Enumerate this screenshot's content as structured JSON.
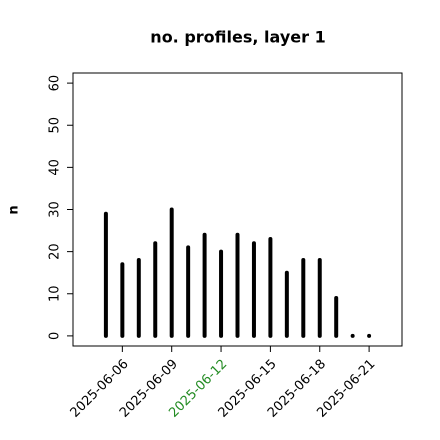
{
  "chart_data": {
    "type": "bar",
    "title": "no. profiles, layer 1",
    "y_label": "n",
    "x": [
      "2025-06-05",
      "2025-06-06",
      "2025-06-07",
      "2025-06-08",
      "2025-06-09",
      "2025-06-10",
      "2025-06-11",
      "2025-06-12",
      "2025-06-13",
      "2025-06-14",
      "2025-06-15",
      "2025-06-16",
      "2025-06-17",
      "2025-06-18",
      "2025-06-19",
      "2025-06-20",
      "2025-06-21"
    ],
    "values": [
      29,
      17,
      18,
      22,
      30,
      21,
      24,
      20,
      24,
      22,
      23,
      15,
      18,
      18,
      9,
      0,
      0
    ],
    "color": "#000000",
    "xlim": [
      "2025-06-03",
      "2025-06-23"
    ],
    "xticks": [
      "2025-06-06",
      "2025-06-09",
      "2025-06-12",
      "2025-06-15",
      "2025-06-18",
      "2025-06-21"
    ],
    "xtick_colors": [
      "#000000",
      "#000000",
      "#228b22",
      "#000000",
      "#000000",
      "#000000"
    ],
    "ylim": [
      -2.4,
      62.4
    ],
    "yticks": [
      0,
      10,
      20,
      30,
      40,
      50,
      60
    ],
    "grid": false
  }
}
